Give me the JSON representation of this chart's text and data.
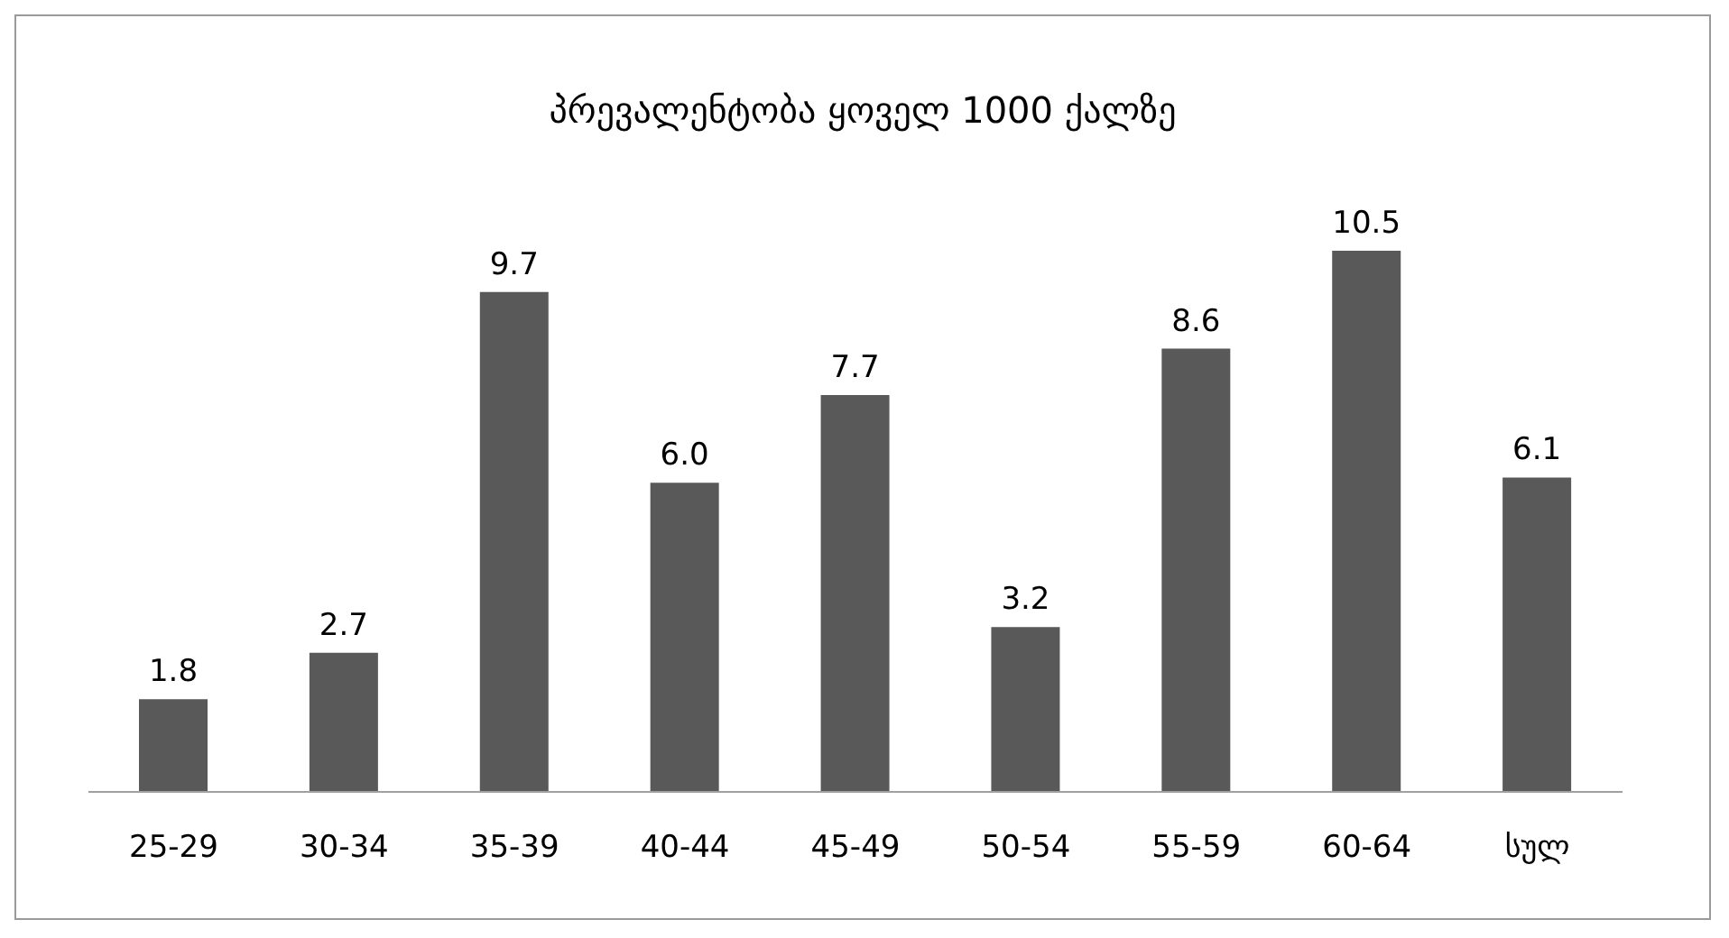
{
  "chart_data": {
    "type": "bar",
    "title": "პრევალენტობა ყოველ 1000 ქალზე",
    "categories": [
      "25-29",
      "30-34",
      "35-39",
      "40-44",
      "45-49",
      "50-54",
      "55-59",
      "60-64",
      "სულ"
    ],
    "values": [
      1.8,
      2.7,
      9.7,
      6.0,
      7.7,
      3.2,
      8.6,
      10.5,
      6.1
    ],
    "value_labels": [
      "1.8",
      "2.7",
      "9.7",
      "6.0",
      "7.7",
      "3.2",
      "8.6",
      "10.5",
      "6.1"
    ],
    "color": "#595959",
    "grid": false,
    "legend": false
  }
}
